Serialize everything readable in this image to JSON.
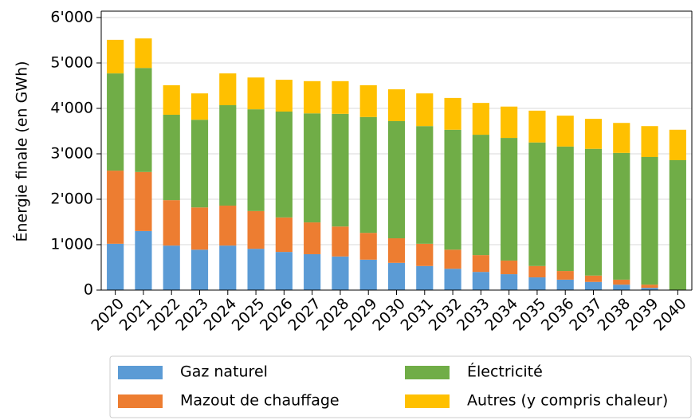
{
  "chart_data": {
    "type": "stacked_bar",
    "y_label": "Énergie finale (en GWh)",
    "categories": [
      "2020",
      "2021",
      "2022",
      "2023",
      "2024",
      "2025",
      "2026",
      "2027",
      "2028",
      "2029",
      "2030",
      "2031",
      "2032",
      "2033",
      "2034",
      "2035",
      "2036",
      "2037",
      "2038",
      "2039",
      "2040"
    ],
    "series": [
      {
        "name": "Gaz naturel",
        "color": "#5b9bd5",
        "values": [
          1020,
          1300,
          980,
          890,
          980,
          910,
          840,
          790,
          740,
          670,
          600,
          530,
          470,
          400,
          350,
          280,
          230,
          180,
          120,
          50,
          0
        ]
      },
      {
        "name": "Mazout de chauffage",
        "color": "#ed7d31",
        "values": [
          1610,
          1300,
          1000,
          930,
          880,
          830,
          760,
          700,
          660,
          590,
          540,
          490,
          420,
          370,
          300,
          250,
          190,
          140,
          110,
          70,
          0
        ]
      },
      {
        "name": "Électricité",
        "color": "#70ad47",
        "values": [
          2140,
          2290,
          1880,
          1930,
          2210,
          2240,
          2330,
          2400,
          2480,
          2550,
          2580,
          2590,
          2640,
          2650,
          2700,
          2720,
          2740,
          2790,
          2790,
          2810,
          2860
        ]
      },
      {
        "name": "Autres (y compris chaleur)",
        "color": "#ffc000",
        "values": [
          740,
          650,
          650,
          580,
          700,
          700,
          700,
          710,
          720,
          700,
          700,
          720,
          700,
          700,
          690,
          700,
          680,
          660,
          660,
          680,
          670
        ]
      }
    ],
    "ylim": [
      0,
      6000
    ],
    "yticks": [
      0,
      {
        "value": 1000,
        "label": "1'000"
      },
      {
        "value": 2000,
        "label": "2'000"
      },
      {
        "value": 3000,
        "label": "3'000"
      },
      {
        "value": 4000,
        "label": "4'000"
      },
      {
        "value": 5000,
        "label": "5'000"
      },
      {
        "value": 6000,
        "label": "6'000"
      }
    ],
    "grid": true,
    "legend": "bottom"
  }
}
